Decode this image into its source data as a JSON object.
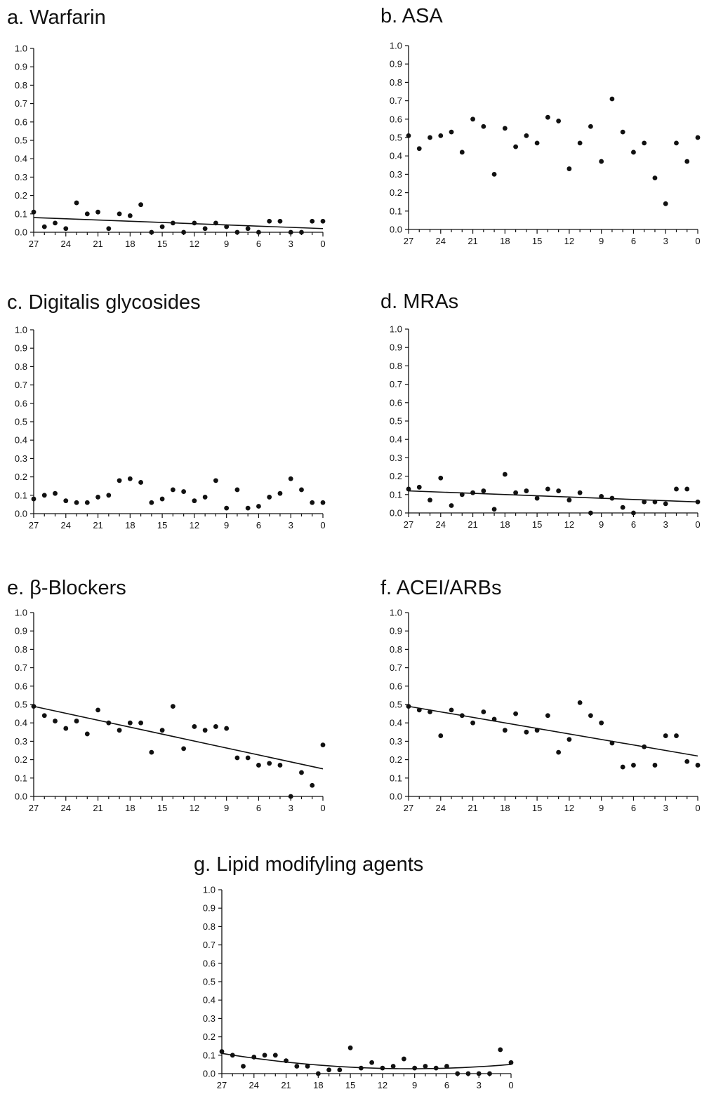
{
  "figure": {
    "panels": [
      {
        "id": "a",
        "title": "a. Warfarin"
      },
      {
        "id": "b",
        "title": "b. ASA"
      },
      {
        "id": "c",
        "title": "c. Digitalis glycosides"
      },
      {
        "id": "d",
        "title": "d. MRAs"
      },
      {
        "id": "e",
        "title": "e. β-Blockers"
      },
      {
        "id": "f",
        "title": "f. ACEI/ARBs"
      },
      {
        "id": "g",
        "title": "g. Lipid modifyling agents"
      }
    ]
  },
  "chart_data": [
    {
      "type": "scatter",
      "title": "a. Warfarin",
      "xlabel": "",
      "ylabel": "",
      "xlim": [
        27,
        0
      ],
      "ylim": [
        0,
        1
      ],
      "x_ticks": [
        27,
        24,
        21,
        18,
        15,
        12,
        9,
        6,
        3,
        0
      ],
      "y_ticks": [
        "0.0",
        "0.1",
        "0.2",
        "0.3",
        "0.4",
        "0.5",
        "0.6",
        "0.7",
        "0.8",
        "0.9",
        "1.0"
      ],
      "grid": false,
      "x": [
        27,
        26,
        25,
        24,
        23,
        22,
        21,
        20,
        19,
        18,
        17,
        16,
        15,
        14,
        13,
        12,
        11,
        10,
        9,
        8,
        7,
        6,
        5,
        4,
        3,
        2,
        1,
        0
      ],
      "values": [
        0.11,
        0.03,
        0.05,
        0.02,
        0.16,
        0.1,
        0.11,
        0.02,
        0.1,
        0.09,
        0.15,
        0.0,
        0.03,
        0.05,
        0.0,
        0.05,
        0.02,
        0.05,
        0.03,
        0.0,
        0.02,
        0.0,
        0.06,
        0.06,
        0.0,
        0.0,
        0.06,
        0.06
      ],
      "trend": {
        "type": "linear",
        "start": [
          27,
          0.08
        ],
        "end": [
          0,
          0.02
        ]
      }
    },
    {
      "type": "scatter",
      "title": "b. ASA",
      "xlabel": "",
      "ylabel": "",
      "xlim": [
        27,
        0
      ],
      "ylim": [
        0,
        1
      ],
      "x_ticks": [
        27,
        24,
        21,
        18,
        15,
        12,
        9,
        6,
        3,
        0
      ],
      "y_ticks": [
        "0.0",
        "0.1",
        "0.2",
        "0.3",
        "0.4",
        "0.5",
        "0.6",
        "0.7",
        "0.8",
        "0.9",
        "1.0"
      ],
      "grid": false,
      "x": [
        27,
        26,
        25,
        24,
        23,
        22,
        21,
        20,
        19,
        18,
        17,
        16,
        15,
        14,
        13,
        12,
        11,
        10,
        9,
        8,
        7,
        6,
        5,
        4,
        3,
        2,
        1,
        0
      ],
      "values": [
        0.51,
        0.44,
        0.5,
        0.51,
        0.53,
        0.42,
        0.6,
        0.56,
        0.3,
        0.55,
        0.45,
        0.51,
        0.47,
        0.61,
        0.59,
        0.33,
        0.47,
        0.56,
        0.37,
        0.71,
        0.53,
        0.42,
        0.47,
        0.28,
        0.14,
        0.47,
        0.37,
        0.5
      ],
      "trend": null
    },
    {
      "type": "scatter",
      "title": "c. Digitalis glycosides",
      "xlabel": "",
      "ylabel": "",
      "xlim": [
        27,
        0
      ],
      "ylim": [
        0,
        1
      ],
      "x_ticks": [
        27,
        24,
        21,
        18,
        15,
        12,
        9,
        6,
        3,
        0
      ],
      "y_ticks": [
        "0.0",
        "0.1",
        "0.2",
        "0.3",
        "0.4",
        "0.5",
        "0.6",
        "0.7",
        "0.8",
        "0.9",
        "1.0"
      ],
      "grid": false,
      "x": [
        27,
        26,
        25,
        24,
        23,
        22,
        21,
        20,
        19,
        18,
        17,
        16,
        15,
        14,
        13,
        12,
        11,
        10,
        9,
        8,
        7,
        6,
        5,
        4,
        3,
        2,
        1,
        0
      ],
      "values": [
        0.08,
        0.1,
        0.11,
        0.07,
        0.06,
        0.06,
        0.09,
        0.1,
        0.18,
        0.19,
        0.17,
        0.06,
        0.08,
        0.13,
        0.12,
        0.07,
        0.09,
        0.18,
        0.03,
        0.13,
        0.03,
        0.04,
        0.09,
        0.11,
        0.19,
        0.13,
        0.06,
        0.06
      ],
      "trend": null
    },
    {
      "type": "scatter",
      "title": "d. MRAs",
      "xlabel": "",
      "ylabel": "",
      "xlim": [
        27,
        0
      ],
      "ylim": [
        0,
        1
      ],
      "x_ticks": [
        27,
        24,
        21,
        18,
        15,
        12,
        9,
        6,
        3,
        0
      ],
      "y_ticks": [
        "0.0",
        "0.1",
        "0.2",
        "0.3",
        "0.4",
        "0.5",
        "0.6",
        "0.7",
        "0.8",
        "0.9",
        "1.0"
      ],
      "grid": false,
      "x": [
        27,
        26,
        25,
        24,
        23,
        22,
        21,
        20,
        19,
        18,
        17,
        16,
        15,
        14,
        13,
        12,
        11,
        10,
        9,
        8,
        7,
        6,
        5,
        4,
        3,
        2,
        1,
        0
      ],
      "values": [
        0.13,
        0.14,
        0.07,
        0.19,
        0.04,
        0.1,
        0.11,
        0.12,
        0.02,
        0.21,
        0.11,
        0.12,
        0.08,
        0.13,
        0.12,
        0.07,
        0.11,
        0.0,
        0.09,
        0.08,
        0.03,
        0.0,
        0.06,
        0.06,
        0.05,
        0.13,
        0.13,
        0.06
      ],
      "trend": {
        "type": "linear",
        "start": [
          27,
          0.12
        ],
        "end": [
          0,
          0.06
        ]
      }
    },
    {
      "type": "scatter",
      "title": "e. β-Blockers",
      "xlabel": "",
      "ylabel": "",
      "xlim": [
        27,
        0
      ],
      "ylim": [
        0,
        1
      ],
      "x_ticks": [
        27,
        24,
        21,
        18,
        15,
        12,
        9,
        6,
        3,
        0
      ],
      "y_ticks": [
        "0.0",
        "0.1",
        "0.2",
        "0.3",
        "0.4",
        "0.5",
        "0.6",
        "0.7",
        "0.8",
        "0.9",
        "1.0"
      ],
      "grid": false,
      "x": [
        27,
        26,
        25,
        24,
        23,
        22,
        21,
        20,
        19,
        18,
        17,
        16,
        15,
        14,
        13,
        12,
        11,
        10,
        9,
        8,
        7,
        6,
        5,
        4,
        3,
        2,
        1,
        0
      ],
      "values": [
        0.49,
        0.44,
        0.41,
        0.37,
        0.41,
        0.34,
        0.47,
        0.4,
        0.36,
        0.4,
        0.4,
        0.24,
        0.36,
        0.49,
        0.26,
        0.38,
        0.36,
        0.38,
        0.37,
        0.21,
        0.21,
        0.17,
        0.18,
        0.17,
        0.0,
        0.13,
        0.06,
        0.28
      ],
      "trend": {
        "type": "linear",
        "start": [
          27,
          0.49
        ],
        "end": [
          0,
          0.15
        ]
      }
    },
    {
      "type": "scatter",
      "title": "f. ACEI/ARBs",
      "xlabel": "",
      "ylabel": "",
      "xlim": [
        27,
        0
      ],
      "ylim": [
        0,
        1
      ],
      "x_ticks": [
        27,
        24,
        21,
        18,
        15,
        12,
        9,
        6,
        3,
        0
      ],
      "y_ticks": [
        "0.0",
        "0.1",
        "0.2",
        "0.3",
        "0.4",
        "0.5",
        "0.6",
        "0.7",
        "0.8",
        "0.9",
        "1.0"
      ],
      "grid": false,
      "x": [
        27,
        26,
        25,
        24,
        23,
        22,
        21,
        20,
        19,
        18,
        17,
        16,
        15,
        14,
        13,
        12,
        11,
        10,
        9,
        8,
        7,
        6,
        5,
        4,
        3,
        2,
        1,
        0
      ],
      "values": [
        0.49,
        0.47,
        0.46,
        0.33,
        0.47,
        0.44,
        0.4,
        0.46,
        0.42,
        0.36,
        0.45,
        0.35,
        0.36,
        0.44,
        0.24,
        0.31,
        0.51,
        0.44,
        0.4,
        0.29,
        0.16,
        0.17,
        0.27,
        0.17,
        0.33,
        0.33,
        0.19,
        0.17
      ],
      "trend": {
        "type": "linear",
        "start": [
          27,
          0.49
        ],
        "end": [
          0,
          0.22
        ]
      }
    },
    {
      "type": "scatter",
      "title": "g. Lipid modifyling agents",
      "xlabel": "",
      "ylabel": "",
      "xlim": [
        27,
        0
      ],
      "ylim": [
        0,
        1
      ],
      "x_ticks": [
        27,
        24,
        21,
        18,
        15,
        12,
        9,
        6,
        3,
        0
      ],
      "y_ticks": [
        "0.0",
        "0.1",
        "0.2",
        "0.3",
        "0.4",
        "0.5",
        "0.6",
        "0.7",
        "0.8",
        "0.9",
        "1.0"
      ],
      "grid": false,
      "x": [
        27,
        26,
        25,
        24,
        23,
        22,
        21,
        20,
        19,
        18,
        17,
        16,
        15,
        14,
        13,
        12,
        11,
        10,
        9,
        8,
        7,
        6,
        5,
        4,
        3,
        2,
        1,
        0
      ],
      "values": [
        0.12,
        0.1,
        0.04,
        0.09,
        0.1,
        0.1,
        0.07,
        0.04,
        0.04,
        0.0,
        0.02,
        0.02,
        0.14,
        0.03,
        0.06,
        0.03,
        0.04,
        0.08,
        0.03,
        0.04,
        0.03,
        0.04,
        0.0,
        0.0,
        0.0,
        0.0,
        0.13,
        0.06
      ],
      "trend": {
        "type": "quadratic",
        "start": [
          27,
          0.11
        ],
        "mid": [
          13,
          0.03
        ],
        "end": [
          0,
          0.05
        ]
      }
    }
  ]
}
